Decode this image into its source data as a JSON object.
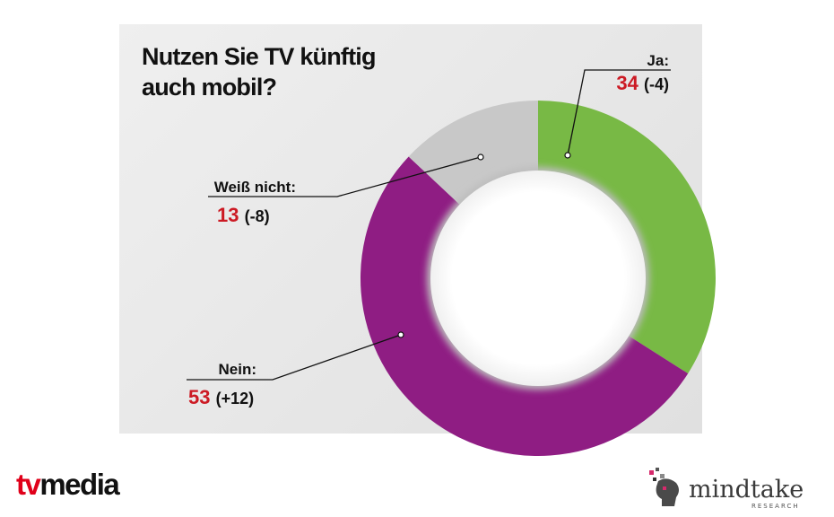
{
  "title_lines": [
    "Nutzen Sie TV künftig",
    "auch mobil?"
  ],
  "chart_data": {
    "type": "pie",
    "variant": "donut",
    "categories": [
      "Ja:",
      "Nein:",
      "Weiß nicht:"
    ],
    "values": [
      34,
      53,
      13
    ],
    "changes": [
      "(-4)",
      "(+12)",
      "(-8)"
    ],
    "colors": [
      "#78b945",
      "#8f1d83",
      "#c8c8c8"
    ],
    "value_color": "#cc1a24"
  },
  "labels": {
    "ja": {
      "name": "Ja:",
      "value": "34",
      "change": "(-4)"
    },
    "nein": {
      "name": "Nein:",
      "value": "53",
      "change": "(+12)"
    },
    "weiss": {
      "name": "Weiß nicht:",
      "value": "13",
      "change": "(-8)"
    }
  },
  "logos": {
    "tvmedia": {
      "prefix": "tv",
      "suffix": "media"
    },
    "mindtake": {
      "name": "mindtake",
      "sub": "RESEARCH"
    }
  }
}
